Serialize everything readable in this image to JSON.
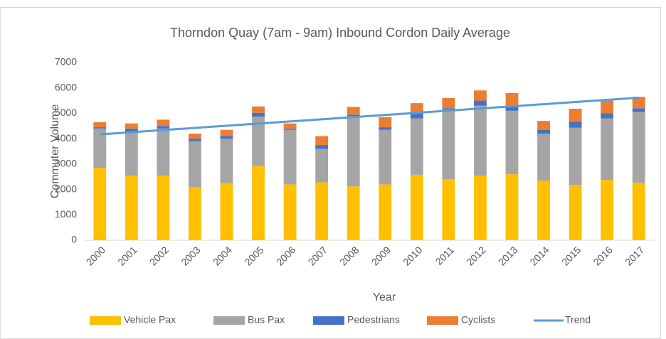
{
  "chart_data": {
    "type": "bar",
    "stacked": true,
    "title": "Thorndon Quay (7am - 9am) Inbound Cordon Daily Average",
    "x_label": "Year",
    "y_label": "Commuter Volume",
    "categories": [
      "2000",
      "2001",
      "2002",
      "2003",
      "2004",
      "2005",
      "2006",
      "2007",
      "2008",
      "2009",
      "2010",
      "2011",
      "2012",
      "2013",
      "2014",
      "2015",
      "2016",
      "2017"
    ],
    "series": [
      {
        "name": "Vehicle Pax",
        "color": "#ffc000",
        "values": [
          2850,
          2550,
          2550,
          2080,
          2250,
          2920,
          2200,
          2280,
          2120,
          2200,
          2580,
          2400,
          2550,
          2600,
          2350,
          2180,
          2380,
          2270
        ]
      },
      {
        "name": "Bus Pax",
        "color": "#a5a5a5",
        "values": [
          1550,
          1700,
          1850,
          1820,
          1750,
          1950,
          2150,
          1320,
          2780,
          2150,
          2220,
          2750,
          2750,
          2500,
          1850,
          2250,
          2420,
          2780
        ]
      },
      {
        "name": "Pedestrians",
        "color": "#4472c4",
        "values": [
          50,
          150,
          100,
          100,
          100,
          150,
          50,
          150,
          50,
          100,
          200,
          50,
          200,
          150,
          150,
          250,
          200,
          150
        ]
      },
      {
        "name": "Cyclists",
        "color": "#ed7d31",
        "values": [
          200,
          200,
          250,
          200,
          250,
          250,
          200,
          350,
          300,
          400,
          400,
          400,
          400,
          550,
          350,
          500,
          500,
          450
        ]
      },
      {
        "name": "Trend",
        "color": "#5b9bd5",
        "type": "line",
        "values": [
          4170,
          4255,
          4340,
          4425,
          4510,
          4595,
          4680,
          4765,
          4850,
          4935,
          5020,
          5105,
          5190,
          5275,
          5360,
          5445,
          5530,
          5615
        ]
      }
    ],
    "ylim": [
      0,
      7000
    ],
    "yticks": [
      0,
      1000,
      2000,
      3000,
      4000,
      5000,
      6000,
      7000
    ],
    "grid": false,
    "legend": "bottom"
  }
}
